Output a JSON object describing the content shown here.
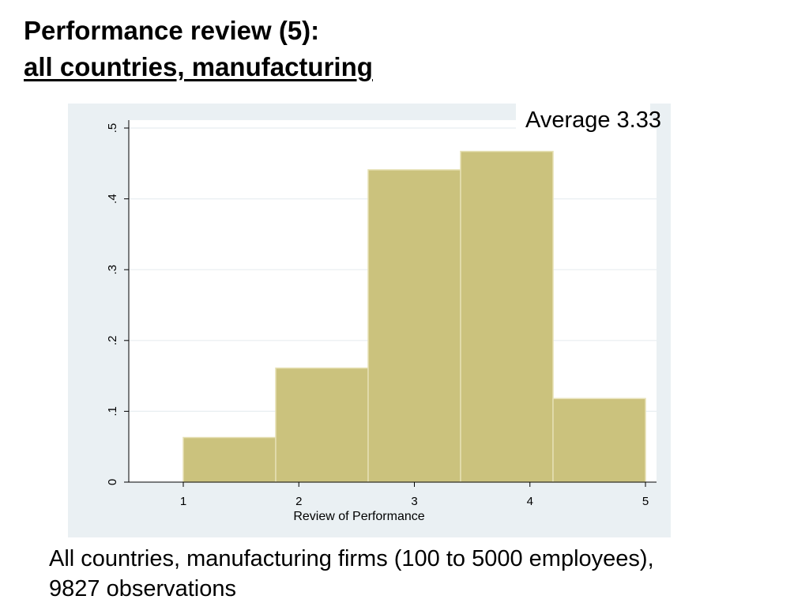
{
  "slide": {
    "title_line1": "Performance review (5):",
    "title_line2": "all countries, manufacturing",
    "annotation": "Average 3.33",
    "caption_line1": "All countries, manufacturing firms (100 to 5000 employees),",
    "caption_line2": "9827 observations"
  },
  "chart_data": {
    "type": "bar",
    "title": "",
    "xlabel": "Review of Performance",
    "ylabel": "",
    "x_ticks": [
      1,
      2,
      3,
      4,
      5
    ],
    "x_tick_labels": [
      "1",
      "2",
      "3",
      "4",
      "5"
    ],
    "y_ticks": [
      0,
      0.1,
      0.2,
      0.3,
      0.4,
      0.5
    ],
    "y_tick_labels": [
      "0",
      ".1",
      ".2",
      ".3",
      ".4",
      ".5"
    ],
    "xlim": [
      0.5,
      5.1
    ],
    "ylim": [
      0,
      0.5
    ],
    "bins": [
      {
        "start": 1.0,
        "end": 1.8,
        "value": 0.063
      },
      {
        "start": 1.8,
        "end": 2.6,
        "value": 0.161
      },
      {
        "start": 2.6,
        "end": 3.4,
        "value": 0.441
      },
      {
        "start": 3.4,
        "end": 4.2,
        "value": 0.467
      },
      {
        "start": 4.2,
        "end": 5.0,
        "value": 0.118
      }
    ],
    "grid": true,
    "colors": {
      "bar_fill": "#cbc27d",
      "bar_edge": "#e6e0b4",
      "plot_background": "#ffffff",
      "panel_background": "#eaf0f3",
      "gridline": "#e8eef1"
    }
  }
}
